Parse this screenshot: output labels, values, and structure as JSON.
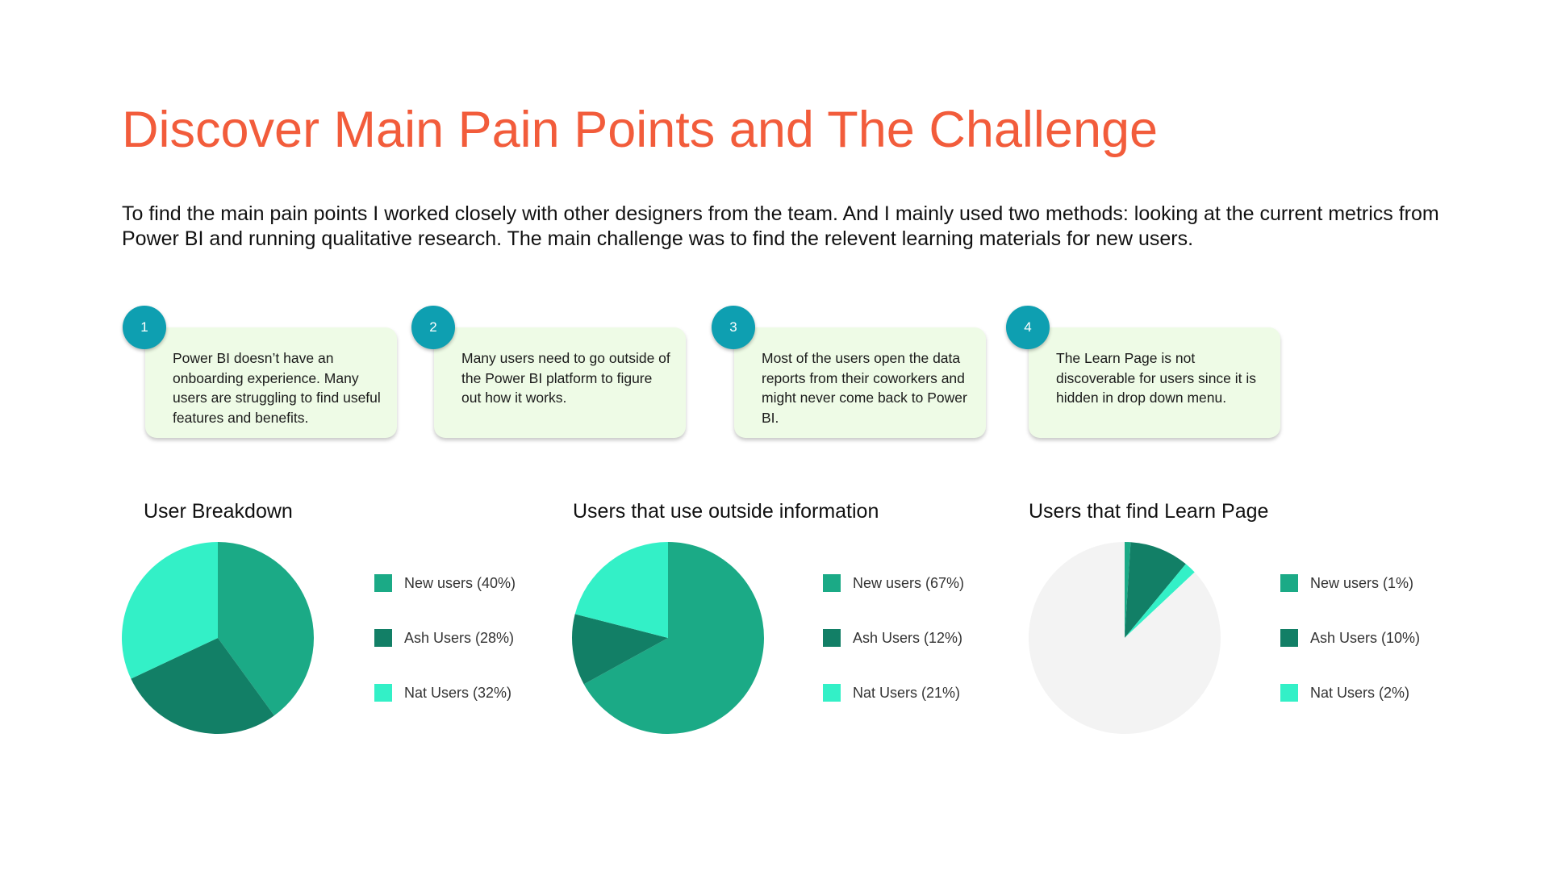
{
  "title": "Discover Main Pain Points and The Challenge",
  "intro": "To find the main pain points I worked closely with other designers from the team. And I mainly used two methods: looking at the current metrics from Power BI and running qualitative research. The main challenge was to find the relevent learning materials for new users.",
  "colors": {
    "title": "#F25C3B",
    "badge": "#0E9FB1",
    "card": "#EEFBE6",
    "new_users": "#1BAA86",
    "ash_users": "#127F66",
    "nat_users": "#33F0C7",
    "remainder": "#F3F3F3"
  },
  "cards": [
    {
      "number": "1",
      "text": "Power BI doesn’t have an onboarding experience. Many users are struggling to find useful features and benefits."
    },
    {
      "number": "2",
      "text": "Many users need to go outside of the Power BI platform to figure out how it works."
    },
    {
      "number": "3",
      "text": "Most of the users open the data reports from their coworkers and might never come back to Power BI."
    },
    {
      "number": "4",
      "text": "The Learn Page is not discoverable for users since it is hidden in drop down menu."
    }
  ],
  "chart_data": [
    {
      "type": "pie",
      "title": "User Breakdown",
      "legend_position": "right",
      "slices": [
        {
          "label": "New users (40%)",
          "value": 40,
          "color": "#1BAA86"
        },
        {
          "label": "Ash Users (28%)",
          "value": 28,
          "color": "#127F66"
        },
        {
          "label": "Nat Users (32%)",
          "value": 32,
          "color": "#33F0C7"
        }
      ],
      "remainder": 0
    },
    {
      "type": "pie",
      "title": "Users that use outside information",
      "legend_position": "right",
      "slices": [
        {
          "label": "New users (67%)",
          "value": 67,
          "color": "#1BAA86"
        },
        {
          "label": "Ash Users (12%)",
          "value": 12,
          "color": "#127F66"
        },
        {
          "label": "Nat Users (21%)",
          "value": 21,
          "color": "#33F0C7"
        }
      ],
      "remainder": 0
    },
    {
      "type": "pie",
      "title": "Users that find Learn Page",
      "legend_position": "right",
      "slices": [
        {
          "label": "New users (1%)",
          "value": 1,
          "color": "#1BAA86"
        },
        {
          "label": "Ash Users (10%)",
          "value": 10,
          "color": "#127F66"
        },
        {
          "label": "Nat Users (2%)",
          "value": 2,
          "color": "#33F0C7"
        }
      ],
      "remainder": 87,
      "remainder_color": "#F3F3F3"
    }
  ]
}
